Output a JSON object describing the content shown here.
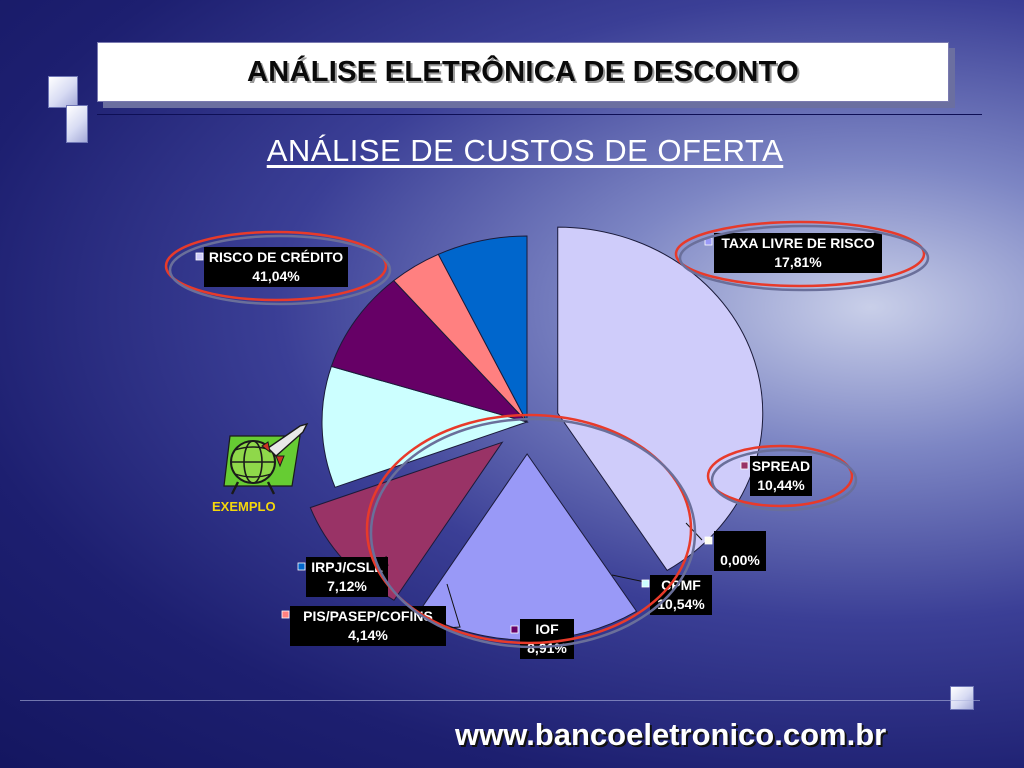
{
  "header": {
    "title": "ANÁLISE ELETRÔNICA DE DESCONTO",
    "subtitle": "ANÁLISE DE CUSTOS DE OFERTA"
  },
  "mascot": {
    "label": "EXEMPLO",
    "icon": "globe-rocket-icon"
  },
  "footer": {
    "url": "www.bancoeletronico.com.br"
  },
  "colors": {
    "risco": "#cfccfa",
    "taxa": "#9999f7",
    "spread": "#993366",
    "zero": "#fffff0",
    "cpmf": "#ccffff",
    "iof": "#660066",
    "pis": "#ff8080",
    "irpj": "#0066cc",
    "highlight_ring": "#e83a2a"
  },
  "chart_data": {
    "type": "pie",
    "title": "",
    "slices": [
      {
        "name": "RISCO DE CRÉDITO",
        "value": 41.04,
        "value_label": "41,04%",
        "color_key": "risco"
      },
      {
        "name": "TAXA LIVRE DE RISCO",
        "value": 17.81,
        "value_label": "17,81%",
        "color_key": "taxa"
      },
      {
        "name": "SPREAD",
        "value": 10.44,
        "value_label": "10,44%",
        "color_key": "spread"
      },
      {
        "name": "",
        "value": 0.0,
        "value_label": "0,00%",
        "color_key": "zero"
      },
      {
        "name": "CPMF",
        "value": 10.54,
        "value_label": "10,54%",
        "color_key": "cpmf"
      },
      {
        "name": "IOF",
        "value": 8.91,
        "value_label": "8,91%",
        "color_key": "iof"
      },
      {
        "name": "PIS/PASEP/COFINS",
        "value": 4.14,
        "value_label": "4,14%",
        "color_key": "pis"
      },
      {
        "name": "IRPJ/CSLL",
        "value": 7.12,
        "value_label": "7,12%",
        "color_key": "irpj"
      }
    ],
    "highlighted": [
      "RISCO DE CRÉDITO",
      "TAXA LIVRE DE RISCO",
      "SPREAD"
    ],
    "legend": "none"
  }
}
